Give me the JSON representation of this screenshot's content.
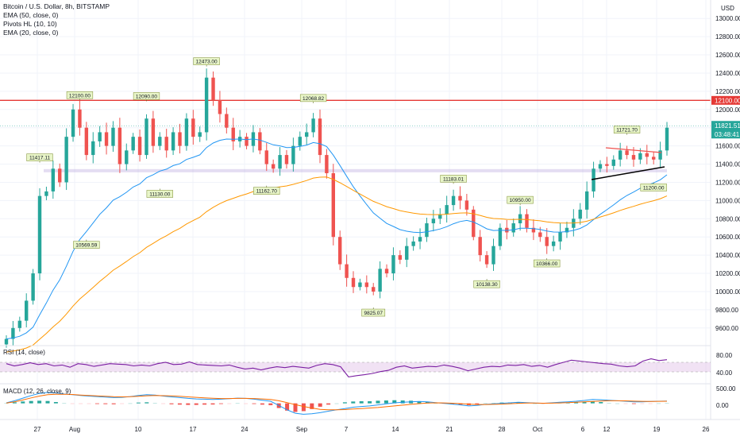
{
  "legend": {
    "symbol": "Bitcoin / U.S. Dollar, 8h, BITSTAMP",
    "ema50": "EMA (50, close, 0)",
    "pivots": "Pivots HL (10, 10)",
    "ema20": "EMA (20, close, 0)"
  },
  "currency": "USD",
  "rsi": {
    "label": "RSI (14, close)",
    "levels": [
      "80.00",
      "40.00"
    ]
  },
  "macd": {
    "label": "MACD (12, 26, close, 9)",
    "levels": [
      "500.00",
      "0.00"
    ]
  },
  "colors": {
    "up": "#26a69a",
    "down": "#ef5350",
    "ema20": "#2196f3",
    "ema50": "#ff9800",
    "resistance": "#e53935",
    "zone": "#b39ddb",
    "rsi": "#7b1fa2"
  },
  "chart_data": {
    "type": "candlestick",
    "symbol": "Bitcoin / U.S. Dollar",
    "timeframe": "8h",
    "exchange": "BITSTAMP",
    "ylim": [
      9450,
      13150
    ],
    "yticks": [
      "9600.00",
      "9800.00",
      "10000.00",
      "10200.00",
      "10400.00",
      "10600.00",
      "10800.00",
      "11000.00",
      "11200.00",
      "11400.00",
      "11600.00",
      "11800.00",
      "12000.00",
      "12200.00",
      "12400.00",
      "12600.00",
      "12800.00",
      "13000.00"
    ],
    "xticks": [
      "27",
      "Aug",
      "10",
      "17",
      "24",
      "Sep",
      "7",
      "14",
      "21",
      "28",
      "Oct",
      "6",
      "12",
      "19",
      "26"
    ],
    "current_price": "11821.51",
    "countdown": "03:48:41",
    "resistance_level": "12100.00",
    "support_zone": [
      11310,
      11345
    ],
    "pivots": [
      {
        "label": "11417.11",
        "value": 11417,
        "type": "high",
        "i": 5
      },
      {
        "label": "12100.00",
        "value": 12100,
        "type": "high",
        "i": 11
      },
      {
        "label": "10569.59",
        "value": 10570,
        "type": "low",
        "i": 12
      },
      {
        "label": "12090.00",
        "value": 12090,
        "type": "high",
        "i": 21
      },
      {
        "label": "11130.00",
        "value": 11130,
        "type": "low",
        "i": 23
      },
      {
        "label": "12473.00",
        "value": 12473,
        "type": "high",
        "i": 30
      },
      {
        "label": "11162.70",
        "value": 11163,
        "type": "low",
        "i": 39
      },
      {
        "label": "12068.82",
        "value": 12069,
        "type": "high",
        "i": 46
      },
      {
        "label": "9825.07",
        "value": 9825,
        "type": "low",
        "i": 55
      },
      {
        "label": "11183.01",
        "value": 11183,
        "type": "high",
        "i": 67
      },
      {
        "label": "10138.30",
        "value": 10138,
        "type": "low",
        "i": 72
      },
      {
        "label": "10950.00",
        "value": 10950,
        "type": "high",
        "i": 77
      },
      {
        "label": "10366.00",
        "value": 10366,
        "type": "low",
        "i": 81
      },
      {
        "label": "11721.70",
        "value": 11722,
        "type": "high",
        "i": 93
      },
      {
        "label": "11200.00",
        "value": 11200,
        "type": "low",
        "i": 97
      }
    ],
    "closes": [
      9480,
      9600,
      9680,
      9900,
      10200,
      11050,
      11100,
      11350,
      11200,
      11700,
      12000,
      11800,
      11500,
      11650,
      11750,
      11600,
      11800,
      11400,
      11550,
      11700,
      11500,
      11900,
      11600,
      11700,
      11550,
      11750,
      11600,
      11900,
      11700,
      11750,
      12350,
      12100,
      11950,
      11800,
      11650,
      11700,
      11600,
      11750,
      11550,
      11400,
      11350,
      11500,
      11400,
      11600,
      11700,
      11750,
      11900,
      11500,
      11300,
      10600,
      10300,
      10150,
      10050,
      10100,
      10050,
      10000,
      10250,
      10200,
      10400,
      10350,
      10500,
      10550,
      10600,
      10750,
      10800,
      10850,
      10950,
      11050,
      11000,
      10900,
      10600,
      10400,
      10300,
      10500,
      10700,
      10650,
      10750,
      10850,
      10700,
      10650,
      10600,
      10500,
      10550,
      10650,
      10700,
      10800,
      10900,
      11100,
      11350,
      11400,
      11380,
      11450,
      11550,
      11500,
      11450,
      11520,
      11480,
      11450,
      11550,
      11800
    ],
    "rsi_values": [
      60,
      55,
      58,
      62,
      58,
      60,
      55,
      57,
      52,
      60,
      58,
      54,
      57,
      60,
      59,
      58,
      55,
      57,
      55,
      60,
      63,
      58,
      59,
      64,
      58,
      57,
      56,
      55,
      57,
      52,
      48,
      50,
      46,
      50,
      53,
      51,
      54,
      52,
      50,
      56,
      60,
      58,
      53,
      30,
      33,
      35,
      38,
      42,
      45,
      52,
      55,
      50,
      52,
      54,
      53,
      57,
      54,
      50,
      44,
      48,
      52,
      54,
      53,
      57,
      56,
      58,
      54,
      56,
      52,
      58,
      63,
      68,
      66,
      64,
      62,
      60,
      59,
      55,
      53,
      55,
      66,
      71,
      67,
      69
    ],
    "macd_values": [
      20,
      100,
      200,
      300,
      380,
      420,
      400,
      360,
      330,
      300,
      280,
      260,
      240,
      220,
      230,
      260,
      300,
      330,
      320,
      280,
      250,
      220,
      190,
      170,
      160,
      150,
      160,
      180,
      200,
      190,
      160,
      120,
      80,
      -80,
      -250,
      -380,
      -420,
      -400,
      -360,
      -300,
      -250,
      -200,
      -150,
      -120,
      -100,
      -60,
      -20,
      20,
      40,
      60,
      70,
      60,
      30,
      0,
      -30,
      -60,
      -100,
      -80,
      -40,
      -20,
      0,
      20,
      40,
      30,
      10,
      0,
      20,
      40,
      60,
      80,
      110,
      150,
      140,
      120,
      100,
      80,
      60,
      60,
      70,
      80,
      90
    ],
    "signal_values": [
      10,
      60,
      130,
      210,
      280,
      330,
      350,
      350,
      340,
      320,
      300,
      285,
      270,
      255,
      250,
      255,
      270,
      290,
      300,
      295,
      285,
      270,
      250,
      230,
      210,
      195,
      185,
      185,
      190,
      192,
      185,
      170,
      150,
      100,
      30,
      -50,
      -120,
      -180,
      -230,
      -250,
      -250,
      -240,
      -220,
      -200,
      -180,
      -160,
      -130,
      -100,
      -70,
      -40,
      -10,
      10,
      20,
      15,
      5,
      -10,
      -30,
      -45,
      -45,
      -40,
      -30,
      -15,
      0,
      10,
      10,
      5,
      8,
      15,
      25,
      40,
      55,
      75,
      90,
      100,
      100,
      95,
      85,
      78,
      75,
      76,
      80
    ]
  }
}
